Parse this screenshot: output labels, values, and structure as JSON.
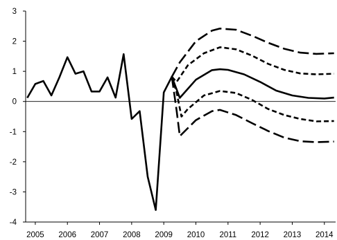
{
  "chart_data": {
    "type": "line",
    "title": "",
    "xlabel": "",
    "ylabel": "",
    "xlim": [
      2004.7,
      2014.35
    ],
    "ylim": [
      -4,
      3
    ],
    "y_ticks": [
      3,
      2,
      1,
      0,
      -1,
      -2,
      -3,
      -4
    ],
    "x_ticks": [
      {
        "label": "2005",
        "x": 2005.0
      },
      {
        "label": "2006",
        "x": 2006.0
      },
      {
        "label": "2007",
        "x": 2007.0
      },
      {
        "label": "2008",
        "x": 2008.0
      },
      {
        "label": "2009",
        "x": 2009.0
      },
      {
        "label": "2010",
        "x": 2010.0
      },
      {
        "label": "2011",
        "x": 2011.0
      },
      {
        "label": "2012",
        "x": 2012.0
      },
      {
        "label": "2013",
        "x": 2013.0
      },
      {
        "label": "2014",
        "x": 2014.0
      }
    ],
    "grid": false,
    "zero_line": true,
    "legend": "none",
    "line_color": "#000000",
    "series": [
      {
        "style": "solid",
        "points": [
          [
            2004.75,
            0.12
          ],
          [
            2005.0,
            0.58
          ],
          [
            2005.25,
            0.68
          ],
          [
            2005.5,
            0.2
          ],
          [
            2005.75,
            0.8
          ],
          [
            2006.0,
            1.47
          ],
          [
            2006.25,
            0.92
          ],
          [
            2006.5,
            1.0
          ],
          [
            2006.75,
            0.33
          ],
          [
            2007.0,
            0.33
          ],
          [
            2007.25,
            0.8
          ],
          [
            2007.5,
            0.13
          ],
          [
            2007.75,
            1.57
          ],
          [
            2008.0,
            -0.58
          ],
          [
            2008.25,
            -0.32
          ],
          [
            2008.5,
            -2.5
          ],
          [
            2008.75,
            -3.6
          ],
          [
            2009.0,
            0.3
          ],
          [
            2009.25,
            0.82
          ],
          [
            2009.5,
            0.12
          ],
          [
            2010.0,
            0.72
          ],
          [
            2010.5,
            1.04
          ],
          [
            2010.75,
            1.07
          ],
          [
            2011.0,
            1.05
          ],
          [
            2011.5,
            0.9
          ],
          [
            2012.0,
            0.65
          ],
          [
            2012.5,
            0.36
          ],
          [
            2013.0,
            0.2
          ],
          [
            2013.5,
            0.12
          ],
          [
            2014.0,
            0.1
          ],
          [
            2014.3,
            0.13
          ]
        ]
      },
      {
        "style": "short-dash",
        "points": [
          [
            2009.25,
            0.82
          ],
          [
            2009.4,
            0.65
          ],
          [
            2009.75,
            1.2
          ],
          [
            2010.25,
            1.6
          ],
          [
            2010.75,
            1.8
          ],
          [
            2011.25,
            1.73
          ],
          [
            2011.75,
            1.52
          ],
          [
            2012.25,
            1.25
          ],
          [
            2012.75,
            1.05
          ],
          [
            2013.25,
            0.93
          ],
          [
            2013.75,
            0.9
          ],
          [
            2014.3,
            0.92
          ]
        ]
      },
      {
        "style": "short-dash",
        "points": [
          [
            2009.25,
            0.82
          ],
          [
            2009.4,
            0.3
          ],
          [
            2009.55,
            -0.5
          ],
          [
            2009.75,
            -0.25
          ],
          [
            2010.25,
            0.2
          ],
          [
            2010.75,
            0.35
          ],
          [
            2011.25,
            0.28
          ],
          [
            2011.75,
            0.05
          ],
          [
            2012.25,
            -0.25
          ],
          [
            2012.75,
            -0.45
          ],
          [
            2013.25,
            -0.58
          ],
          [
            2013.75,
            -0.66
          ],
          [
            2014.3,
            -0.65
          ]
        ]
      },
      {
        "style": "long-dash",
        "points": [
          [
            2009.25,
            0.82
          ],
          [
            2009.5,
            1.3
          ],
          [
            2010.0,
            2.0
          ],
          [
            2010.5,
            2.35
          ],
          [
            2010.75,
            2.42
          ],
          [
            2011.25,
            2.38
          ],
          [
            2011.75,
            2.18
          ],
          [
            2012.25,
            1.95
          ],
          [
            2012.75,
            1.75
          ],
          [
            2013.25,
            1.62
          ],
          [
            2013.75,
            1.58
          ],
          [
            2014.3,
            1.6
          ]
        ]
      },
      {
        "style": "long-dash",
        "points": [
          [
            2009.25,
            0.82
          ],
          [
            2009.4,
            -0.3
          ],
          [
            2009.5,
            -1.15
          ],
          [
            2010.0,
            -0.62
          ],
          [
            2010.5,
            -0.32
          ],
          [
            2010.75,
            -0.28
          ],
          [
            2011.25,
            -0.45
          ],
          [
            2011.75,
            -0.72
          ],
          [
            2012.25,
            -0.98
          ],
          [
            2012.75,
            -1.2
          ],
          [
            2013.25,
            -1.32
          ],
          [
            2013.75,
            -1.35
          ],
          [
            2014.3,
            -1.33
          ]
        ]
      }
    ]
  }
}
